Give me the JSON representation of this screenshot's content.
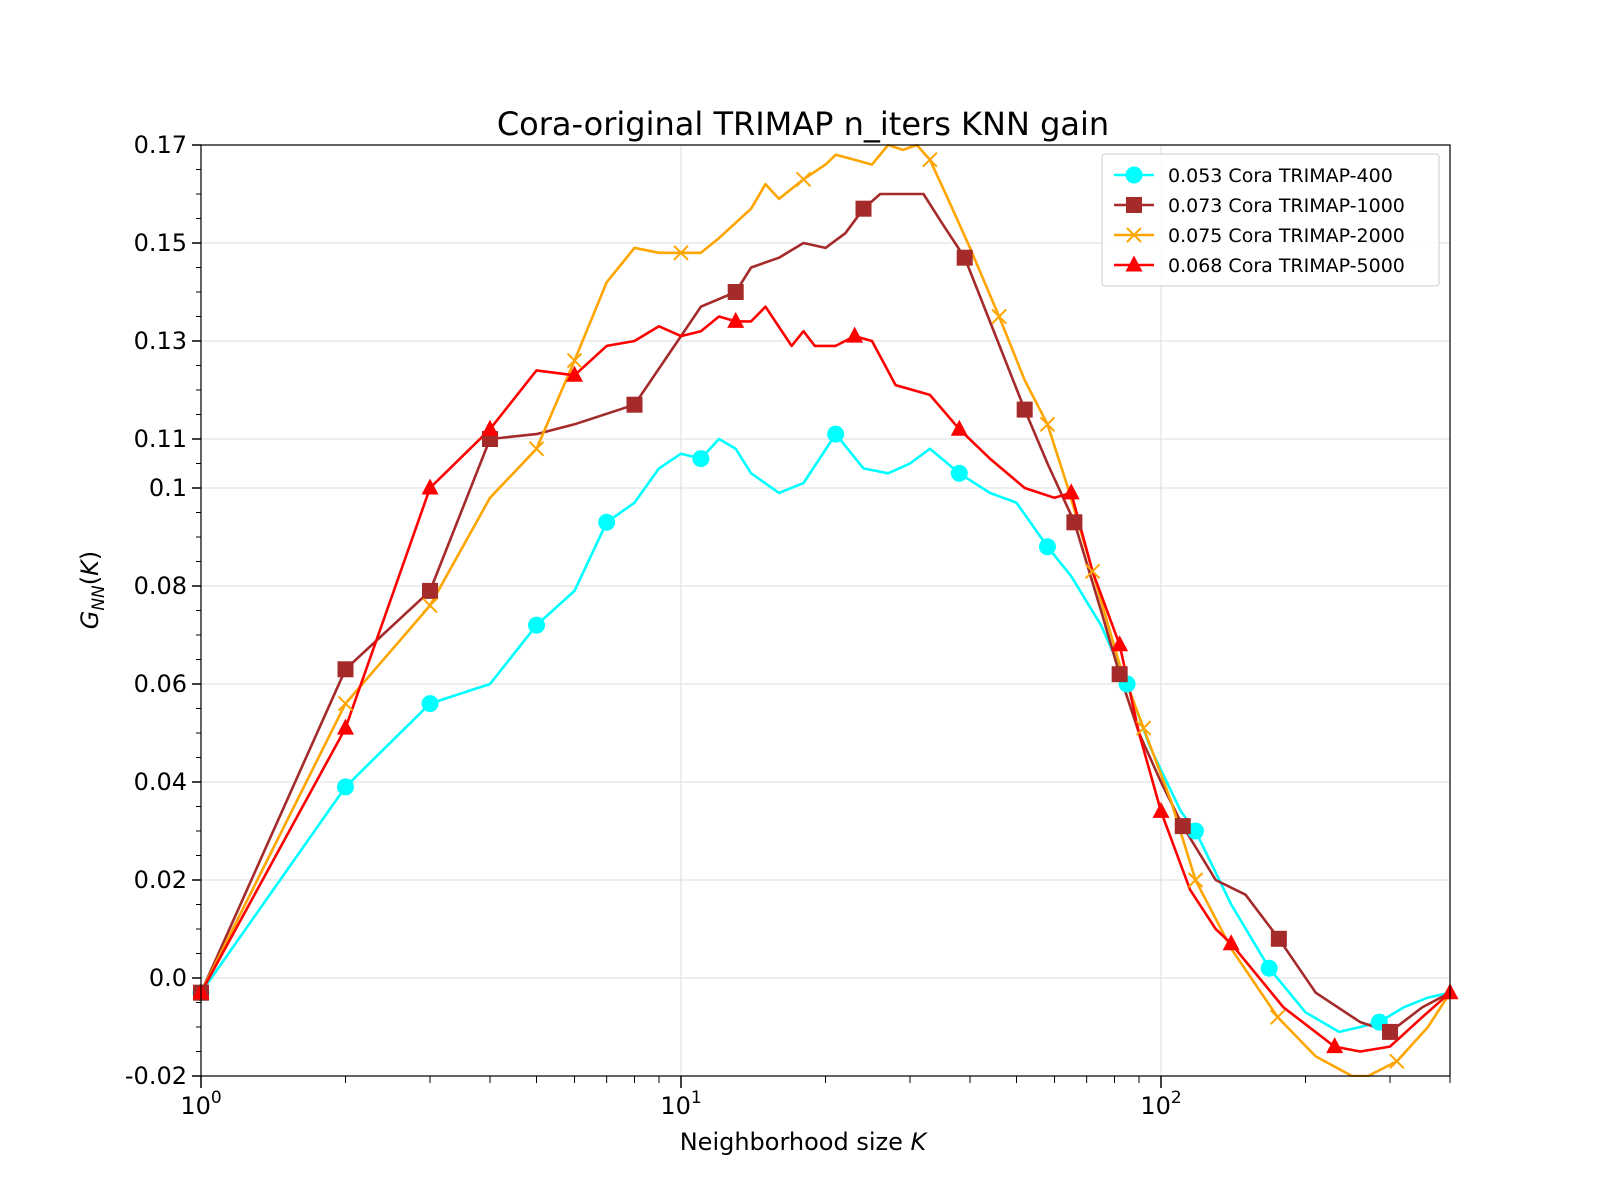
{
  "chart_data": {
    "type": "line",
    "title": "Cora-original TRIMAP n_iters KNN gain",
    "xlabel": "Neighborhood size K",
    "ylabel": "G_NN(K)",
    "x_scale": "log",
    "xlim": [
      1,
      400
    ],
    "ylim": [
      -0.02,
      0.17
    ],
    "x_ticks": [
      {
        "value": 1,
        "label_base": "10",
        "label_exp": "0"
      },
      {
        "value": 10,
        "label_base": "10",
        "label_exp": "1"
      },
      {
        "value": 100,
        "label_base": "10",
        "label_exp": "2"
      }
    ],
    "y_ticks": [
      {
        "value": -0.02,
        "label": "-0.02"
      },
      {
        "value": 0.0,
        "label": "0.0"
      },
      {
        "value": 0.02,
        "label": "0.02"
      },
      {
        "value": 0.04,
        "label": "0.04"
      },
      {
        "value": 0.06,
        "label": "0.06"
      },
      {
        "value": 0.08,
        "label": "0.08"
      },
      {
        "value": 0.1,
        "label": "0.1"
      },
      {
        "value": 0.11,
        "label": "0.11"
      },
      {
        "value": 0.13,
        "label": "0.13"
      },
      {
        "value": 0.15,
        "label": "0.15"
      },
      {
        "value": 0.17,
        "label": "0.17"
      }
    ],
    "grid": true,
    "legend_position": "top-right",
    "series": [
      {
        "name": "0.053 Cora TRIMAP-400",
        "color": "#00ffff",
        "marker": "circle",
        "points": [
          [
            1,
            -0.003
          ],
          [
            2,
            0.039
          ],
          [
            3,
            0.056
          ],
          [
            4,
            0.06
          ],
          [
            5,
            0.072
          ],
          [
            6,
            0.079
          ],
          [
            7,
            0.093
          ],
          [
            8,
            0.097
          ],
          [
            9,
            0.104
          ],
          [
            10,
            0.107
          ],
          [
            11,
            0.106
          ],
          [
            12,
            0.11
          ],
          [
            13,
            0.108
          ],
          [
            14,
            0.103
          ],
          [
            16,
            0.099
          ],
          [
            18,
            0.101
          ],
          [
            21,
            0.111
          ],
          [
            24,
            0.104
          ],
          [
            27,
            0.103
          ],
          [
            30,
            0.105
          ],
          [
            33,
            0.108
          ],
          [
            38,
            0.103
          ],
          [
            44,
            0.099
          ],
          [
            50,
            0.097
          ],
          [
            58,
            0.088
          ],
          [
            65,
            0.082
          ],
          [
            75,
            0.072
          ],
          [
            85,
            0.06
          ],
          [
            95,
            0.047
          ],
          [
            110,
            0.034
          ],
          [
            118,
            0.03
          ],
          [
            140,
            0.015
          ],
          [
            168,
            0.002
          ],
          [
            200,
            -0.007
          ],
          [
            235,
            -0.011
          ],
          [
            260,
            -0.01
          ],
          [
            285,
            -0.009
          ],
          [
            320,
            -0.006
          ],
          [
            360,
            -0.004
          ],
          [
            400,
            -0.003
          ]
        ],
        "marker_points": [
          [
            1,
            -0.003
          ],
          [
            2,
            0.039
          ],
          [
            3,
            0.056
          ],
          [
            5,
            0.072
          ],
          [
            7,
            0.093
          ],
          [
            11,
            0.106
          ],
          [
            21,
            0.111
          ],
          [
            38,
            0.103
          ],
          [
            58,
            0.088
          ],
          [
            85,
            0.06
          ],
          [
            118,
            0.03
          ],
          [
            168,
            0.002
          ],
          [
            285,
            -0.009
          ]
        ]
      },
      {
        "name": "0.073 Cora TRIMAP-1000",
        "color": "#a52a2a",
        "marker": "square",
        "points": [
          [
            1,
            -0.003
          ],
          [
            2,
            0.063
          ],
          [
            3,
            0.079
          ],
          [
            4,
            0.11
          ],
          [
            5,
            0.111
          ],
          [
            6,
            0.113
          ],
          [
            8,
            0.117
          ],
          [
            10,
            0.131
          ],
          [
            11,
            0.137
          ],
          [
            13,
            0.14
          ],
          [
            14,
            0.145
          ],
          [
            16,
            0.147
          ],
          [
            18,
            0.15
          ],
          [
            20,
            0.149
          ],
          [
            22,
            0.152
          ],
          [
            24,
            0.157
          ],
          [
            26,
            0.16
          ],
          [
            28,
            0.16
          ],
          [
            32,
            0.16
          ],
          [
            35,
            0.154
          ],
          [
            39,
            0.147
          ],
          [
            44,
            0.134
          ],
          [
            52,
            0.116
          ],
          [
            58,
            0.105
          ],
          [
            66,
            0.093
          ],
          [
            75,
            0.075
          ],
          [
            82,
            0.062
          ],
          [
            90,
            0.05
          ],
          [
            100,
            0.04
          ],
          [
            111,
            0.031
          ],
          [
            130,
            0.02
          ],
          [
            150,
            0.017
          ],
          [
            176,
            0.008
          ],
          [
            210,
            -0.003
          ],
          [
            260,
            -0.009
          ],
          [
            300,
            -0.011
          ],
          [
            350,
            -0.006
          ],
          [
            400,
            -0.003
          ]
        ],
        "marker_points": [
          [
            1,
            -0.003
          ],
          [
            2,
            0.063
          ],
          [
            3,
            0.079
          ],
          [
            4,
            0.11
          ],
          [
            8,
            0.117
          ],
          [
            13,
            0.14
          ],
          [
            24,
            0.157
          ],
          [
            39,
            0.147
          ],
          [
            52,
            0.116
          ],
          [
            66,
            0.093
          ],
          [
            82,
            0.062
          ],
          [
            111,
            0.031
          ],
          [
            176,
            0.008
          ],
          [
            300,
            -0.011
          ]
        ]
      },
      {
        "name": "0.075 Cora TRIMAP-2000",
        "color": "#ffa500",
        "marker": "x",
        "points": [
          [
            1,
            -0.003
          ],
          [
            2,
            0.056
          ],
          [
            3,
            0.076
          ],
          [
            4,
            0.098
          ],
          [
            5,
            0.108
          ],
          [
            6,
            0.126
          ],
          [
            7,
            0.142
          ],
          [
            8,
            0.149
          ],
          [
            9,
            0.148
          ],
          [
            10,
            0.148
          ],
          [
            11,
            0.148
          ],
          [
            12,
            0.151
          ],
          [
            14,
            0.157
          ],
          [
            15,
            0.162
          ],
          [
            16,
            0.159
          ],
          [
            18,
            0.163
          ],
          [
            20,
            0.166
          ],
          [
            21,
            0.168
          ],
          [
            23,
            0.167
          ],
          [
            25,
            0.166
          ],
          [
            27,
            0.17
          ],
          [
            29,
            0.169
          ],
          [
            31,
            0.17
          ],
          [
            33,
            0.167
          ],
          [
            36,
            0.159
          ],
          [
            40,
            0.149
          ],
          [
            46,
            0.135
          ],
          [
            52,
            0.122
          ],
          [
            58,
            0.113
          ],
          [
            64,
            0.1
          ],
          [
            72,
            0.083
          ],
          [
            82,
            0.064
          ],
          [
            92,
            0.051
          ],
          [
            105,
            0.036
          ],
          [
            118,
            0.02
          ],
          [
            140,
            0.006
          ],
          [
            175,
            -0.008
          ],
          [
            210,
            -0.016
          ],
          [
            250,
            -0.02
          ],
          [
            270,
            -0.02
          ],
          [
            310,
            -0.017
          ],
          [
            360,
            -0.01
          ],
          [
            400,
            -0.003
          ]
        ],
        "marker_points": [
          [
            2,
            0.056
          ],
          [
            3,
            0.076
          ],
          [
            5,
            0.108
          ],
          [
            6,
            0.126
          ],
          [
            10,
            0.148
          ],
          [
            18,
            0.163
          ],
          [
            33,
            0.167
          ],
          [
            46,
            0.135
          ],
          [
            58,
            0.113
          ],
          [
            72,
            0.083
          ],
          [
            92,
            0.051
          ],
          [
            118,
            0.02
          ],
          [
            175,
            -0.008
          ],
          [
            310,
            -0.017
          ]
        ]
      },
      {
        "name": "0.068 Cora TRIMAP-5000",
        "color": "#ff0000",
        "marker": "triangle",
        "points": [
          [
            1,
            -0.003
          ],
          [
            2,
            0.051
          ],
          [
            3,
            0.1
          ],
          [
            4,
            0.112
          ],
          [
            5,
            0.124
          ],
          [
            6,
            0.123
          ],
          [
            7,
            0.129
          ],
          [
            8,
            0.13
          ],
          [
            9,
            0.133
          ],
          [
            10,
            0.131
          ],
          [
            11,
            0.132
          ],
          [
            12,
            0.135
          ],
          [
            13,
            0.134
          ],
          [
            14,
            0.134
          ],
          [
            15,
            0.137
          ],
          [
            17,
            0.129
          ],
          [
            18,
            0.132
          ],
          [
            19,
            0.129
          ],
          [
            21,
            0.129
          ],
          [
            23,
            0.131
          ],
          [
            25,
            0.13
          ],
          [
            28,
            0.121
          ],
          [
            33,
            0.119
          ],
          [
            38,
            0.112
          ],
          [
            44,
            0.106
          ],
          [
            52,
            0.1
          ],
          [
            60,
            0.098
          ],
          [
            65,
            0.099
          ],
          [
            72,
            0.083
          ],
          [
            82,
            0.068
          ],
          [
            90,
            0.05
          ],
          [
            100,
            0.034
          ],
          [
            115,
            0.018
          ],
          [
            130,
            0.01
          ],
          [
            140,
            0.007
          ],
          [
            180,
            -0.006
          ],
          [
            230,
            -0.014
          ],
          [
            260,
            -0.015
          ],
          [
            300,
            -0.014
          ],
          [
            350,
            -0.008
          ],
          [
            400,
            -0.003
          ]
        ],
        "marker_points": [
          [
            1,
            -0.003
          ],
          [
            2,
            0.051
          ],
          [
            3,
            0.1
          ],
          [
            4,
            0.112
          ],
          [
            6,
            0.123
          ],
          [
            13,
            0.134
          ],
          [
            23,
            0.131
          ],
          [
            38,
            0.112
          ],
          [
            65,
            0.099
          ],
          [
            82,
            0.068
          ],
          [
            100,
            0.034
          ],
          [
            140,
            0.007
          ],
          [
            230,
            -0.014
          ],
          [
            400,
            -0.003
          ]
        ]
      }
    ]
  }
}
